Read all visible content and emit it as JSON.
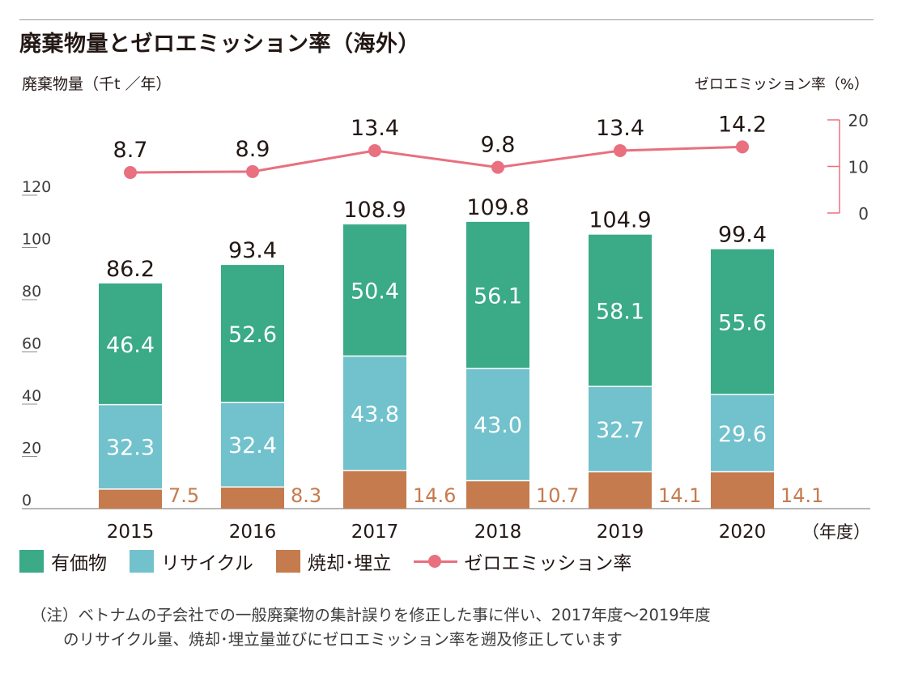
{
  "title": "廃棄物量とゼロエミッション率（海外）",
  "legend": [
    {
      "label": "有価物",
      "color": "#3aaa87",
      "icon": "green-square-icon"
    },
    {
      "label": "リサイクル",
      "color": "#71c2cc",
      "icon": "cyan-square-icon"
    },
    {
      "label": "焼却･埋立",
      "color": "#c57b4d",
      "icon": "brown-square-icon"
    },
    {
      "label": "ゼロエミッション率",
      "color": "#e8707f",
      "icon": "line-marker-icon"
    }
  ],
  "note": {
    "line1": "（注）ベトナムの子会社での一般廃棄物の集計誤りを修正した事に伴い、2017年度～2019年度",
    "line2": "のリサイクル量、焼却･埋立量並びにゼロエミッション率を遡及修正しています"
  },
  "chart_data": {
    "type": "bar",
    "stacked": true,
    "categories": [
      "2015",
      "2016",
      "2017",
      "2018",
      "2019",
      "2020"
    ],
    "xlabel": "（年度）",
    "ylabel": "廃棄物量（千t ／年）",
    "yticks": [
      "0",
      "20",
      "40",
      "60",
      "80",
      "100",
      "120"
    ],
    "ylim": [
      0,
      120
    ],
    "series": [
      {
        "name": "焼却･埋立",
        "color": "#c57b4d",
        "values": [
          7.5,
          8.3,
          14.6,
          10.7,
          14.1,
          14.1
        ],
        "labels": [
          "7.5",
          "8.3",
          "14.6",
          "10.7",
          "14.1",
          "14.1"
        ]
      },
      {
        "name": "リサイクル",
        "color": "#71c2cc",
        "values": [
          32.3,
          32.4,
          43.8,
          43.0,
          32.7,
          29.6
        ],
        "labels": [
          "32.3",
          "32.4",
          "43.8",
          "43.0",
          "32.7",
          "29.6"
        ]
      },
      {
        "name": "有価物",
        "color": "#3aaa87",
        "values": [
          46.4,
          52.6,
          50.4,
          56.1,
          58.1,
          55.6
        ],
        "labels": [
          "46.4",
          "52.6",
          "50.4",
          "56.1",
          "58.1",
          "55.6"
        ]
      }
    ],
    "totals": [
      86.2,
      93.4,
      108.9,
      109.8,
      104.9,
      99.4
    ],
    "total_labels": [
      "86.2",
      "93.4",
      "108.9",
      "109.8",
      "104.9",
      "99.4"
    ],
    "line": {
      "name": "ゼロエミッション率",
      "axis_label": "ゼロエミッション率（%）",
      "color": "#e8707f",
      "values": [
        8.7,
        8.9,
        13.4,
        9.8,
        13.4,
        14.2
      ],
      "labels": [
        "8.7",
        "8.9",
        "13.4",
        "9.8",
        "13.4",
        "14.2"
      ],
      "ylim": [
        0,
        20
      ],
      "yticks": [
        "0",
        "10",
        "20"
      ]
    },
    "legend_position": "bottom-left"
  }
}
